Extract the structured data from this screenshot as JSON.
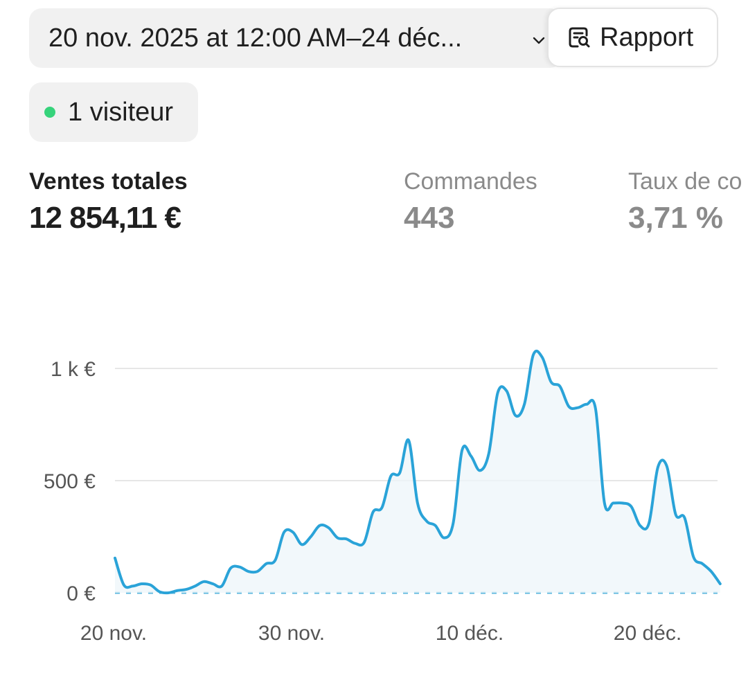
{
  "header": {
    "date_range": "20 nov. 2025 at 12:00 AM–24 déc...",
    "report_label": "Rapport",
    "report_icon": "report-search-icon",
    "chevron_icon": "chevron-down-icon"
  },
  "visitors": {
    "label": "1 visiteur",
    "status_color": "#36d37b"
  },
  "metrics": [
    {
      "label": "Ventes totales",
      "value": "12 854,11 €",
      "active": true
    },
    {
      "label": "Commandes",
      "value": "443",
      "active": false
    },
    {
      "label": "Taux de co",
      "value": "3,71 %",
      "active": false
    }
  ],
  "chart_data": {
    "type": "area",
    "ylim": [
      0,
      1000
    ],
    "yticks": [
      {
        "value": 0,
        "label": "0 €"
      },
      {
        "value": 500,
        "label": "500 €"
      },
      {
        "value": 1000,
        "label": "1 k €"
      }
    ],
    "xticks": [
      "20 nov.",
      "30 nov.",
      "10 déc.",
      "20 déc."
    ],
    "xtick_days": [
      0,
      10,
      20,
      30
    ],
    "line_color": "#2aa3d8",
    "baseline_color": "#5ab6dd",
    "points": [
      {
        "day": 0,
        "y": 155
      },
      {
        "day": 0.5,
        "y": 35
      },
      {
        "day": 1,
        "y": 30
      },
      {
        "day": 1.5,
        "y": 40
      },
      {
        "day": 2,
        "y": 35
      },
      {
        "day": 2.5,
        "y": 5
      },
      {
        "day": 3,
        "y": 0
      },
      {
        "day": 3.5,
        "y": 10
      },
      {
        "day": 4,
        "y": 15
      },
      {
        "day": 4.5,
        "y": 30
      },
      {
        "day": 5,
        "y": 50
      },
      {
        "day": 5.5,
        "y": 40
      },
      {
        "day": 6,
        "y": 30
      },
      {
        "day": 6.5,
        "y": 110
      },
      {
        "day": 7,
        "y": 115
      },
      {
        "day": 7.5,
        "y": 95
      },
      {
        "day": 8,
        "y": 95
      },
      {
        "day": 8.5,
        "y": 130
      },
      {
        "day": 9,
        "y": 145
      },
      {
        "day": 9.5,
        "y": 270
      },
      {
        "day": 10,
        "y": 270
      },
      {
        "day": 10.5,
        "y": 215
      },
      {
        "day": 11,
        "y": 250
      },
      {
        "day": 11.5,
        "y": 300
      },
      {
        "day": 12,
        "y": 290
      },
      {
        "day": 12.5,
        "y": 245
      },
      {
        "day": 13,
        "y": 240
      },
      {
        "day": 13.5,
        "y": 220
      },
      {
        "day": 14,
        "y": 225
      },
      {
        "day": 14.5,
        "y": 360
      },
      {
        "day": 15,
        "y": 380
      },
      {
        "day": 15.5,
        "y": 520
      },
      {
        "day": 16,
        "y": 535
      },
      {
        "day": 16.5,
        "y": 680
      },
      {
        "day": 17,
        "y": 400
      },
      {
        "day": 17.5,
        "y": 320
      },
      {
        "day": 18,
        "y": 300
      },
      {
        "day": 18.5,
        "y": 245
      },
      {
        "day": 19,
        "y": 310
      },
      {
        "day": 19.5,
        "y": 635
      },
      {
        "day": 20,
        "y": 610
      },
      {
        "day": 20.5,
        "y": 545
      },
      {
        "day": 21,
        "y": 620
      },
      {
        "day": 21.5,
        "y": 890
      },
      {
        "day": 22,
        "y": 900
      },
      {
        "day": 22.5,
        "y": 790
      },
      {
        "day": 23,
        "y": 840
      },
      {
        "day": 23.5,
        "y": 1060
      },
      {
        "day": 24,
        "y": 1050
      },
      {
        "day": 24.5,
        "y": 940
      },
      {
        "day": 25,
        "y": 920
      },
      {
        "day": 25.5,
        "y": 830
      },
      {
        "day": 26,
        "y": 825
      },
      {
        "day": 26.5,
        "y": 840
      },
      {
        "day": 27,
        "y": 820
      },
      {
        "day": 27.5,
        "y": 400
      },
      {
        "day": 28,
        "y": 400
      },
      {
        "day": 28.5,
        "y": 400
      },
      {
        "day": 29,
        "y": 385
      },
      {
        "day": 29.5,
        "y": 300
      },
      {
        "day": 30,
        "y": 310
      },
      {
        "day": 30.5,
        "y": 560
      },
      {
        "day": 31,
        "y": 565
      },
      {
        "day": 31.5,
        "y": 350
      },
      {
        "day": 32,
        "y": 335
      },
      {
        "day": 32.5,
        "y": 160
      },
      {
        "day": 33,
        "y": 130
      },
      {
        "day": 33.5,
        "y": 95
      },
      {
        "day": 34,
        "y": 40
      }
    ]
  }
}
